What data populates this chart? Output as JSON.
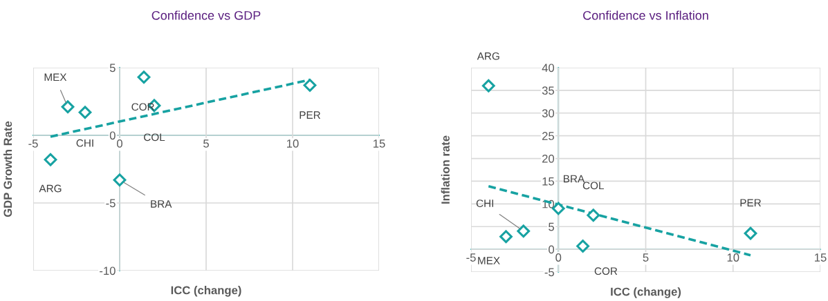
{
  "chart_data": [
    {
      "type": "scatter",
      "title": "Confidence vs GDP",
      "xlabel": "ICC (change)",
      "ylabel": "GDP Growth Rate",
      "xlim": [
        -5,
        15
      ],
      "xticks": [
        -5,
        0,
        5,
        10,
        15
      ],
      "ylim": [
        -10,
        5
      ],
      "yticks": [
        -10,
        -5,
        0,
        5
      ],
      "grid": true,
      "legend": false,
      "series": [
        {
          "type": "scatter",
          "color": "#17a2a2",
          "marker": "diamond",
          "x": [
            -4.0,
            -3.0,
            -2.0,
            0.0,
            1.4,
            2.0,
            11.0
          ],
          "values": [
            -1.8,
            2.1,
            1.7,
            -3.3,
            4.3,
            2.2,
            3.7
          ]
        },
        {
          "type": "line",
          "color": "#17a2a2",
          "line_style": "dashed",
          "x": [
            -4,
            11
          ],
          "values": [
            -0.1,
            4.1
          ]
        }
      ],
      "annotations": [
        {
          "text": "ARG",
          "x": -4.0,
          "y": -1.8
        },
        {
          "text": "MEX",
          "x": -3.0,
          "y": 2.1
        },
        {
          "text": "CHI",
          "x": -2.0,
          "y": 1.7
        },
        {
          "text": "BRA",
          "x": 0.0,
          "y": -3.3
        },
        {
          "text": "COR",
          "x": 1.4,
          "y": 4.3
        },
        {
          "text": "COL",
          "x": 2.0,
          "y": 2.2
        },
        {
          "text": "PER",
          "x": 11.0,
          "y": 3.7
        }
      ]
    },
    {
      "type": "scatter",
      "title": "Confidence vs Inflation",
      "xlabel": "ICC (change)",
      "ylabel": "Inflation rate",
      "xlim": [
        -5,
        15
      ],
      "xticks": [
        -5,
        0,
        5,
        10,
        15
      ],
      "ylim": [
        -5,
        40
      ],
      "yticks": [
        -5,
        0,
        5,
        10,
        15,
        20,
        25,
        30,
        35,
        40
      ],
      "grid": true,
      "legend": false,
      "series": [
        {
          "type": "scatter",
          "color": "#17a2a2",
          "marker": "diamond",
          "x": [
            -4.0,
            -3.0,
            -2.0,
            0.0,
            1.4,
            2.0,
            11.0
          ],
          "values": [
            36,
            2.8,
            4.0,
            9.0,
            0.7,
            7.5,
            3.5
          ]
        },
        {
          "type": "line",
          "color": "#17a2a2",
          "line_style": "dashed",
          "x": [
            -4,
            11
          ],
          "values": [
            13.9,
            -1.3
          ]
        }
      ],
      "annotations": [
        {
          "text": "ARG",
          "x": -4.0,
          "y": 36
        },
        {
          "text": "MEX",
          "x": -3.0,
          "y": 2.8
        },
        {
          "text": "CHI",
          "x": -2.0,
          "y": 4.0
        },
        {
          "text": "BRA",
          "x": 0.0,
          "y": 9.0
        },
        {
          "text": "COR",
          "x": 1.4,
          "y": 0.7
        },
        {
          "text": "COL",
          "x": 2.0,
          "y": 7.5
        },
        {
          "text": "PER",
          "x": 11.0,
          "y": 3.5
        }
      ]
    }
  ]
}
